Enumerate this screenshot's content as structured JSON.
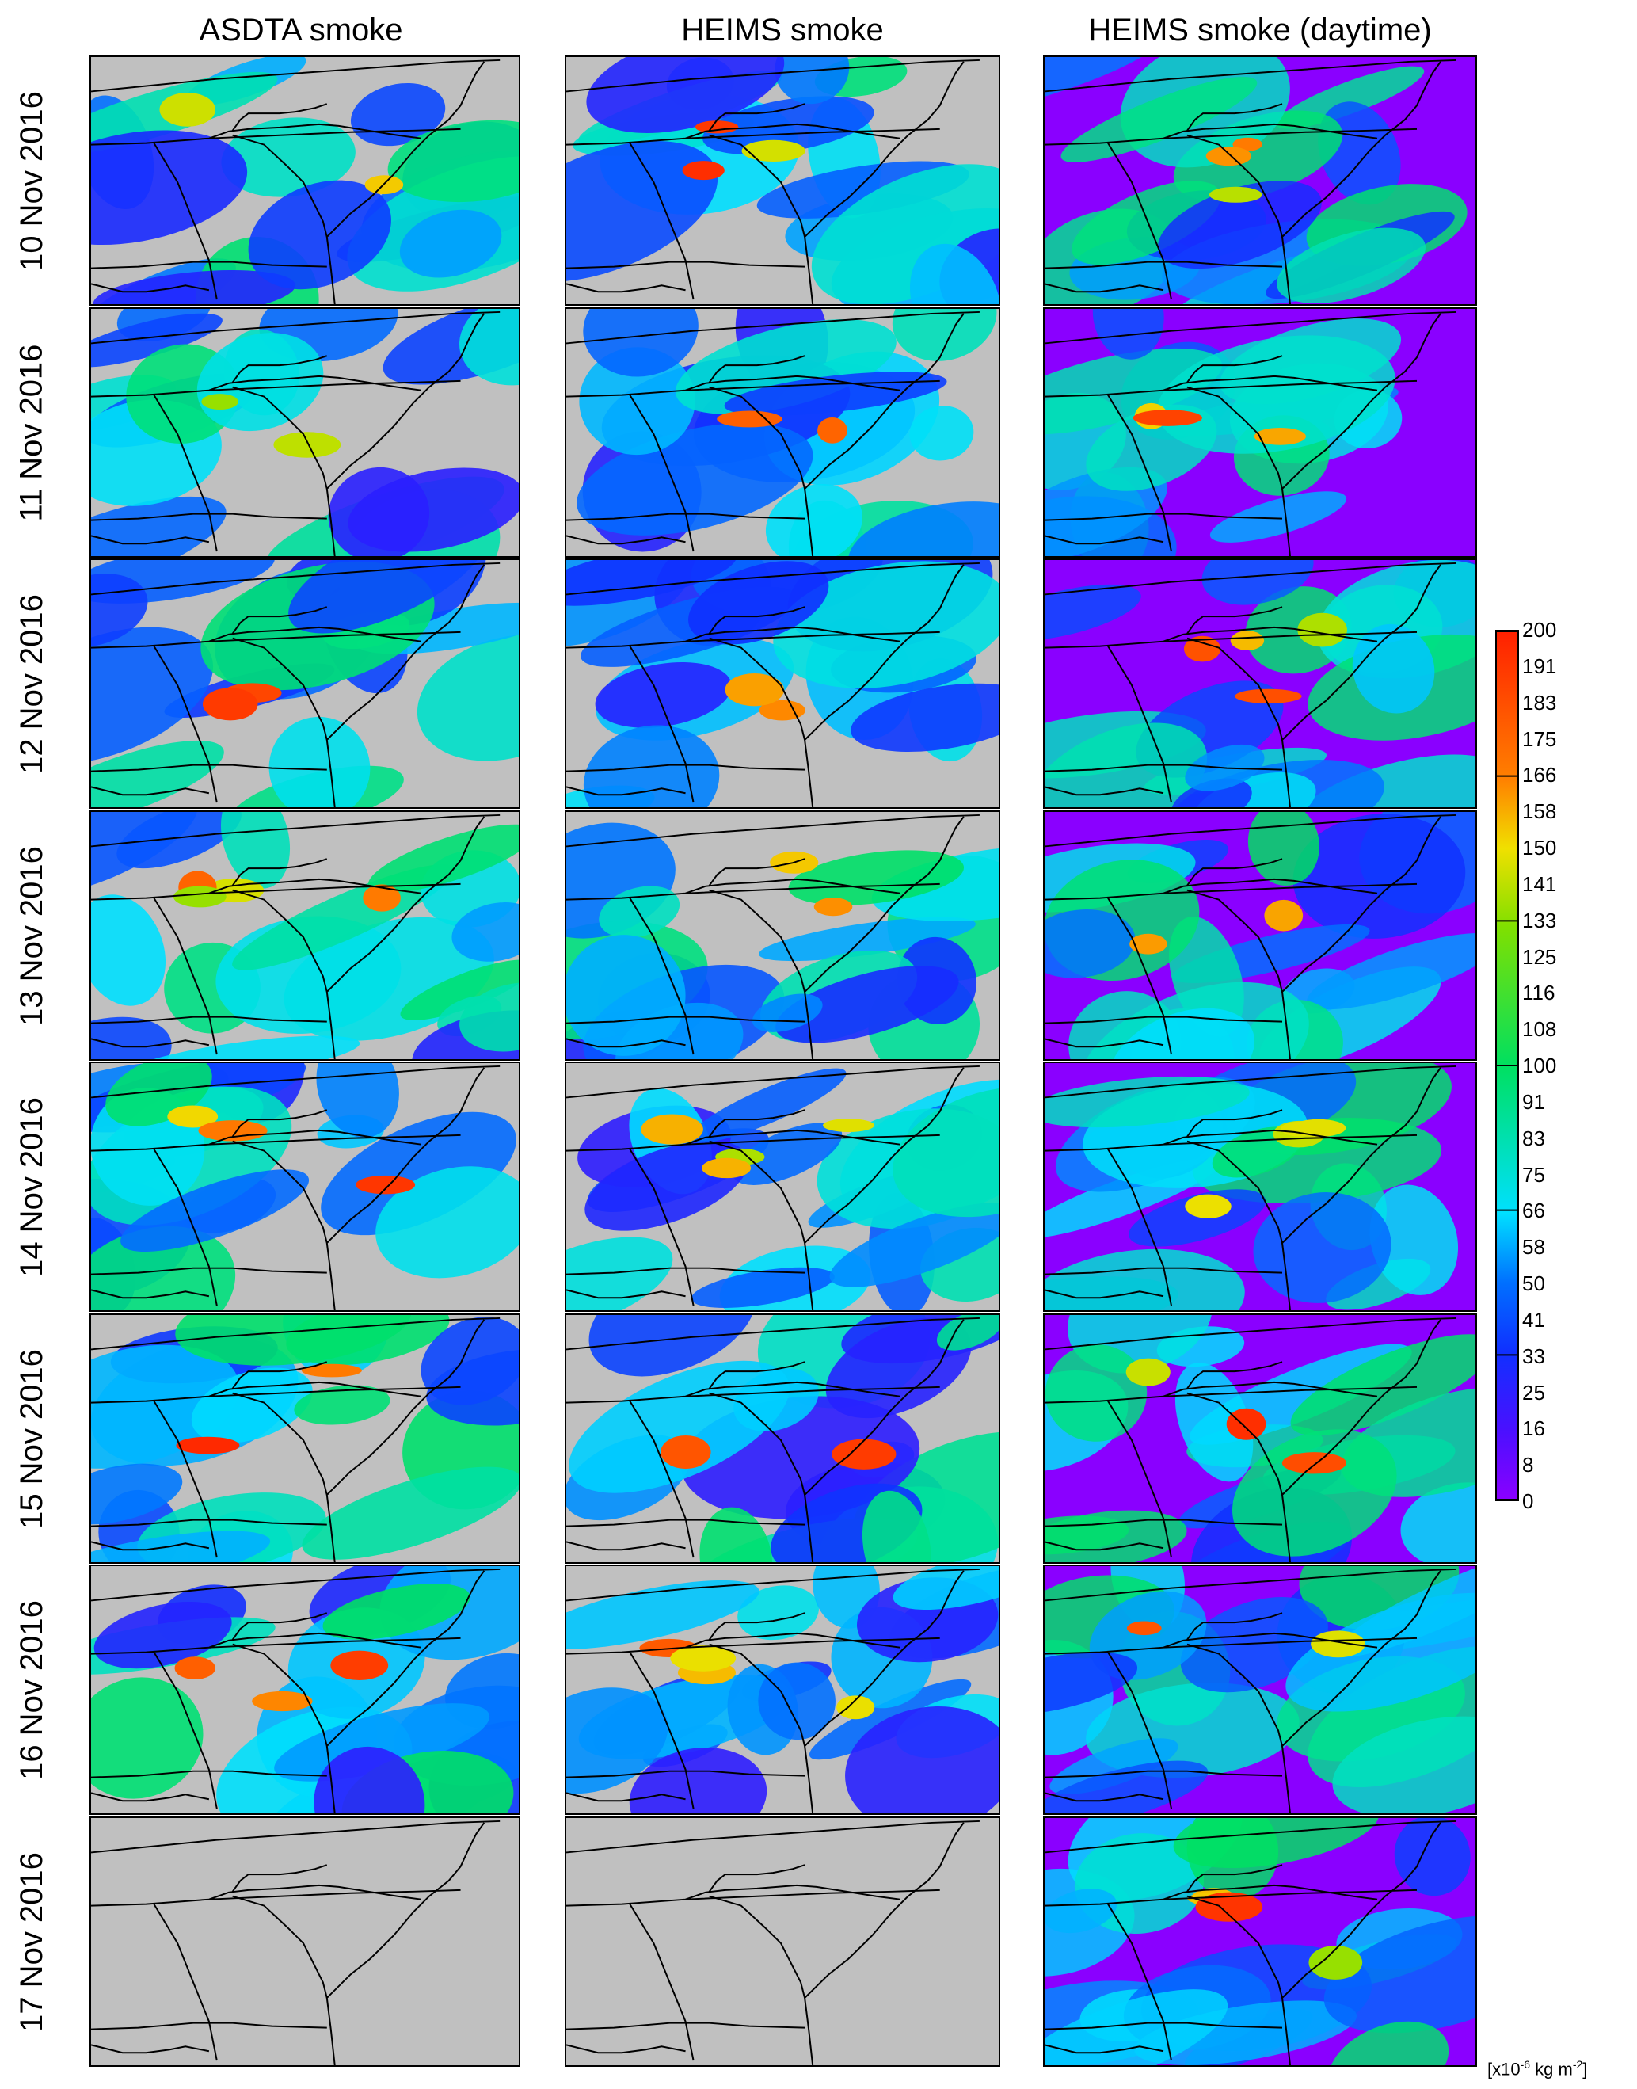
{
  "columns": [
    {
      "title": "ASDTA smoke",
      "left": 0
    },
    {
      "title": "HEIMS smoke",
      "left": 0
    },
    {
      "title": "HEIMS smoke (daytime)",
      "left": 0
    }
  ],
  "rows": [
    {
      "date": "10 Nov 2016"
    },
    {
      "date": "11 Nov 2016"
    },
    {
      "date": "12 Nov 2016"
    },
    {
      "date": "13 Nov 2016"
    },
    {
      "date": "14 Nov 2016"
    },
    {
      "date": "15 Nov 2016"
    },
    {
      "date": "16 Nov 2016"
    },
    {
      "date": "17 Nov 2016"
    }
  ],
  "colorbar": {
    "ticks": [
      "200",
      "191",
      "183",
      "175",
      "166",
      "158",
      "150",
      "141",
      "133",
      "125",
      "116",
      "108",
      "100",
      "91",
      "83",
      "75",
      "66",
      "58",
      "50",
      "41",
      "33",
      "25",
      "16",
      "8",
      "0"
    ],
    "major_ticks": [
      "200",
      "166",
      "133",
      "100",
      "66",
      "33",
      "0"
    ],
    "unit_base": "[x10",
    "unit_exp1": "-6",
    "unit_mid": " kg m",
    "unit_exp2": "-2",
    "unit_end": "]",
    "colors": {
      "low": "#8a00ff",
      "blue": "#1030ff",
      "cyan": "#00e0ff",
      "green": "#00e030",
      "yellow": "#f0e000",
      "red": "#ff2000"
    }
  },
  "map_colors": {
    "no_data": "#c0c0c0",
    "ocean_model": "#8a00ff",
    "outline": "#000000"
  }
}
